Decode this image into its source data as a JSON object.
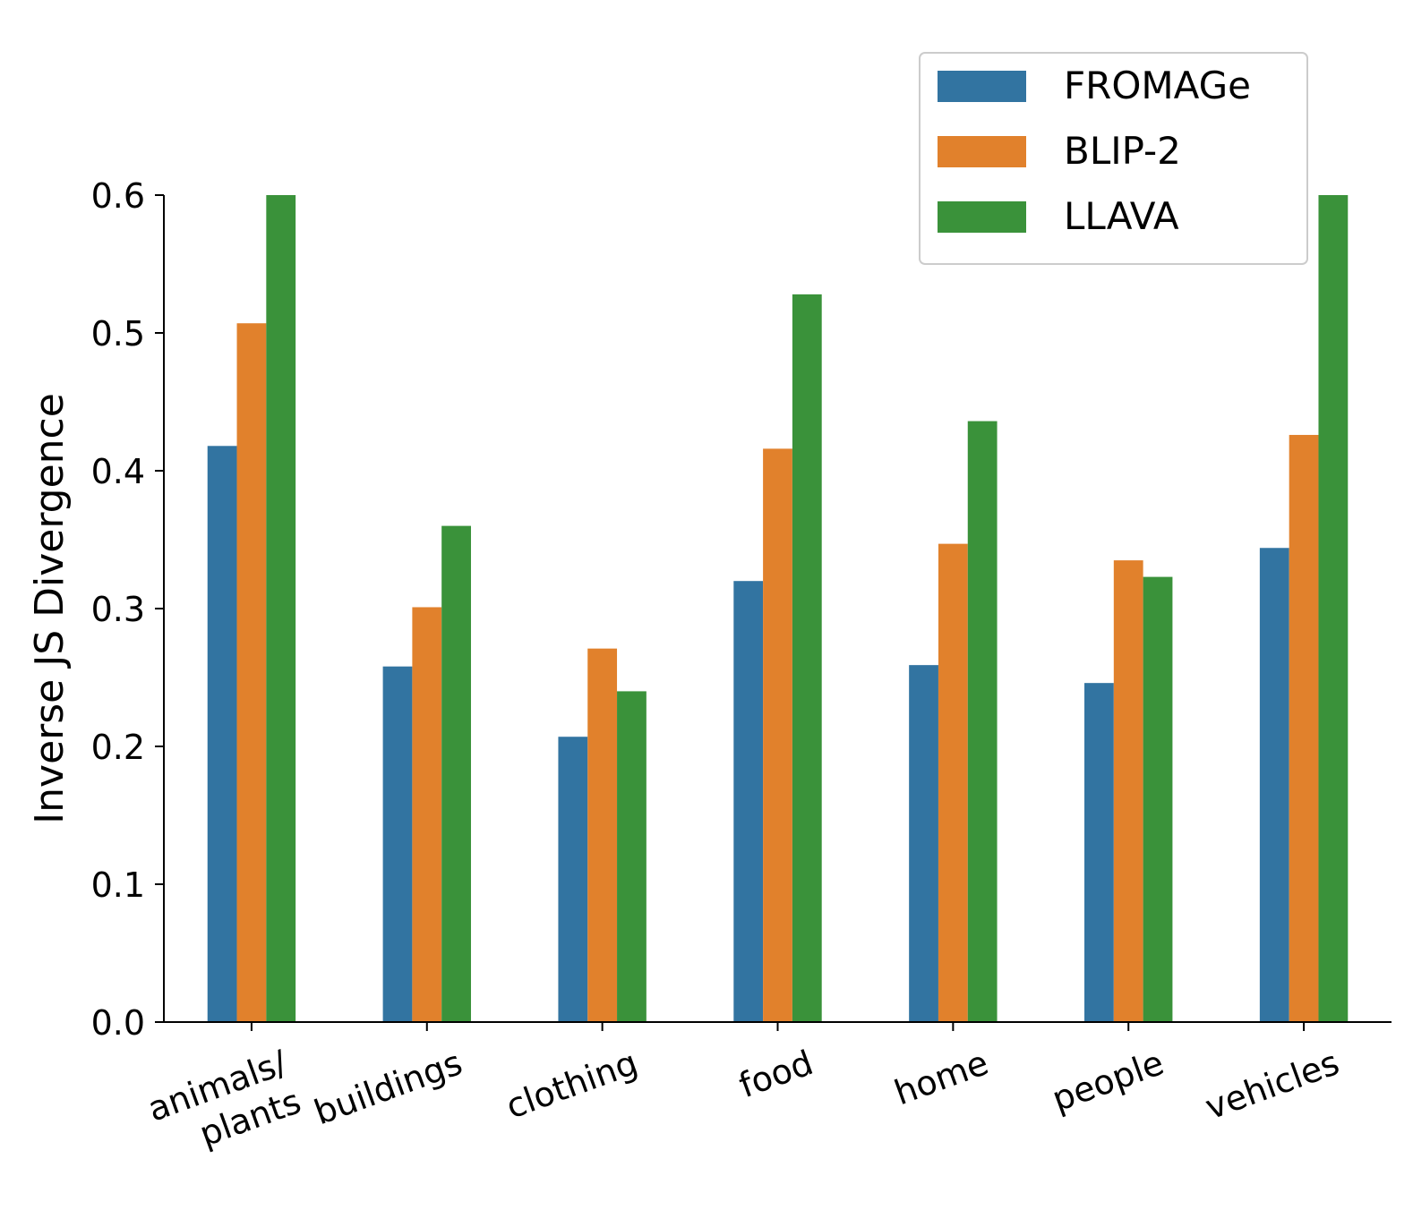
{
  "chart_data": {
    "type": "bar",
    "title": "",
    "xlabel": "",
    "ylabel": "Inverse JS Divergence",
    "ylim": [
      0,
      0.6
    ],
    "yticks": [
      "0.0",
      "0.1",
      "0.2",
      "0.3",
      "0.4",
      "0.5",
      "0.6"
    ],
    "grid": false,
    "legend_position": "top-right",
    "categories": [
      [
        "animals/",
        "plants"
      ],
      [
        "buildings"
      ],
      [
        "clothing"
      ],
      [
        "food"
      ],
      [
        "home"
      ],
      [
        "people"
      ],
      [
        "vehicles"
      ]
    ],
    "series": [
      {
        "name": "FROMAGe",
        "color": "#3274a1",
        "values": [
          0.418,
          0.258,
          0.207,
          0.32,
          0.259,
          0.246,
          0.344
        ]
      },
      {
        "name": "BLIP-2",
        "color": "#e1812c",
        "values": [
          0.507,
          0.301,
          0.271,
          0.416,
          0.347,
          0.335,
          0.426
        ]
      },
      {
        "name": "LLAVA",
        "color": "#3a923a",
        "values": [
          0.6,
          0.36,
          0.24,
          0.528,
          0.436,
          0.323,
          0.6
        ]
      }
    ]
  }
}
